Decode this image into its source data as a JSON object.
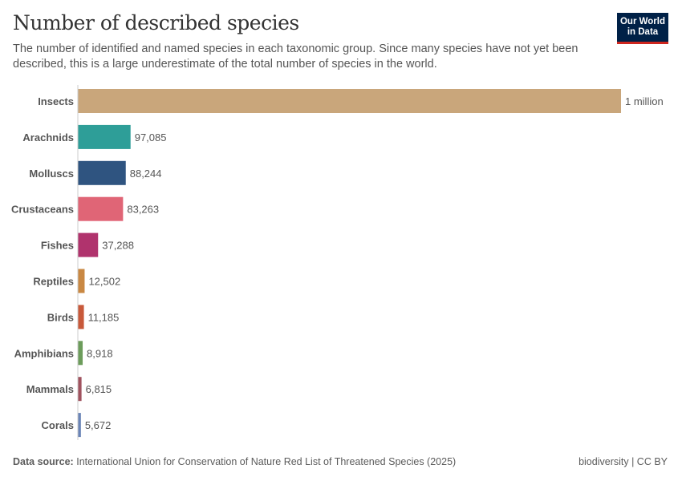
{
  "header": {
    "title": "Number of described species",
    "subtitle": "The number of identified and named species in each taxonomic group. Since many species have not yet been described, this is a large underestimate of the total number of species in the world.",
    "logo": "Our World in Data"
  },
  "footer": {
    "source_label": "Data source:",
    "source": "International Union for Conservation of Nature Red List of Threatened Species (2025)",
    "topic": "biodiversity | CC BY"
  },
  "chart_data": {
    "type": "bar",
    "orientation": "horizontal",
    "title": "Number of described species",
    "categories": [
      "Insects",
      "Arachnids",
      "Molluscs",
      "Crustaceans",
      "Fishes",
      "Reptiles",
      "Birds",
      "Amphibians",
      "Mammals",
      "Corals"
    ],
    "values": [
      1000000,
      97085,
      88244,
      83263,
      37288,
      12502,
      11185,
      8918,
      6815,
      5672
    ],
    "labels": [
      "1 million",
      "97,085",
      "88,244",
      "83,263",
      "37,288",
      "12,502",
      "11,185",
      "8,918",
      "6,815",
      "5,672"
    ],
    "colors": [
      "#c9a67b",
      "#2e9e98",
      "#2f5480",
      "#e06576",
      "#b0336d",
      "#c98843",
      "#c8593a",
      "#6c9c5b",
      "#a0525e",
      "#6a84b7"
    ],
    "xlim": [
      0,
      1000000
    ],
    "grid": false,
    "legend": "none"
  }
}
